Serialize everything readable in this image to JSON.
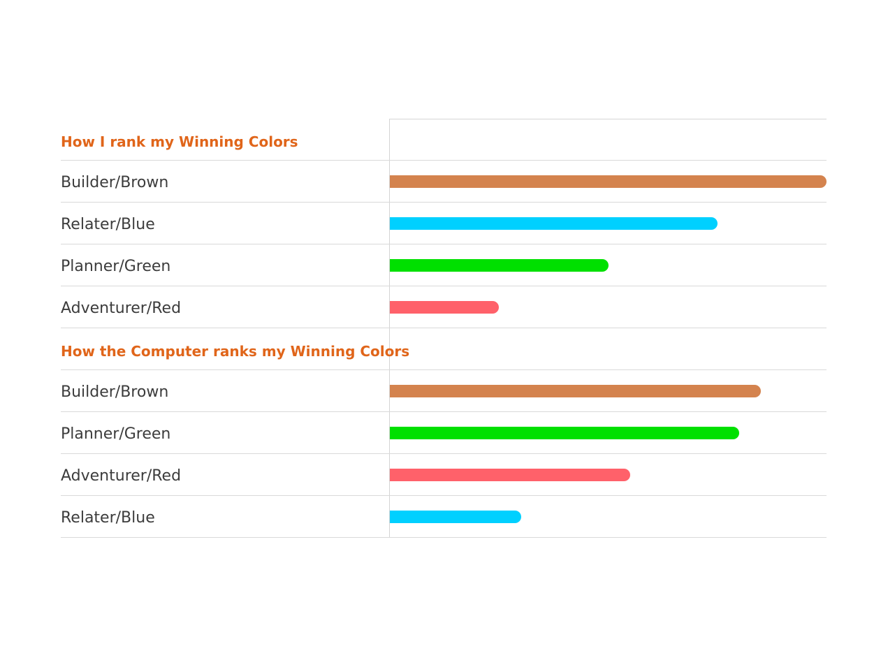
{
  "chart_data": {
    "type": "bar",
    "orientation": "horizontal",
    "xlim": [
      0,
      100
    ],
    "grid": false,
    "sections": [
      {
        "title": "How I rank my Winning Colors",
        "items": [
          {
            "label": "Builder/Brown",
            "value": 100,
            "color": "#d4834e"
          },
          {
            "label": "Relater/Blue",
            "value": 75,
            "color": "#00d0ff"
          },
          {
            "label": "Planner/Green",
            "value": 50,
            "color": "#00e000"
          },
          {
            "label": "Adventurer/Red",
            "value": 25,
            "color": "#ff616a"
          }
        ]
      },
      {
        "title": "How the Computer ranks my Winning Colors",
        "items": [
          {
            "label": "Builder/Brown",
            "value": 85,
            "color": "#d4834e"
          },
          {
            "label": "Planner/Green",
            "value": 80,
            "color": "#00e000"
          },
          {
            "label": "Adventurer/Red",
            "value": 55,
            "color": "#ff616a"
          },
          {
            "label": "Relater/Blue",
            "value": 30,
            "color": "#00d0ff"
          }
        ]
      }
    ]
  }
}
